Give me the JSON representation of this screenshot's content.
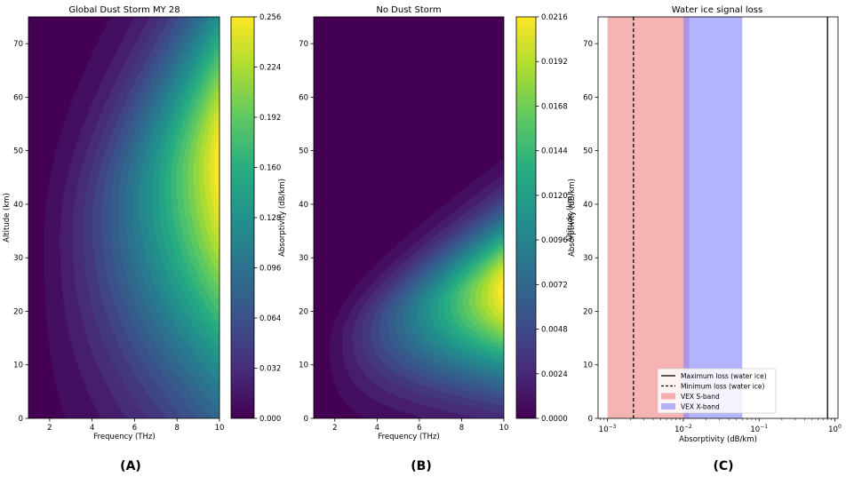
{
  "chart_data": [
    {
      "type": "heatmap",
      "title": "Global Dust Storm MY 28",
      "xlabel": "Frequency (THz)",
      "ylabel": "Altitude (km)",
      "xlim": [
        1,
        10
      ],
      "ylim": [
        0,
        75
      ],
      "xticks": [
        2,
        4,
        6,
        8,
        10
      ],
      "yticks": [
        0,
        10,
        20,
        30,
        40,
        50,
        60,
        70
      ],
      "colorbar": {
        "label": "Absorptivity (dB/km)",
        "colormap": "viridis",
        "range": [
          0,
          0.256
        ],
        "ticks": [
          "0.000",
          "0.032",
          "0.064",
          "0.096",
          "0.128",
          "0.160",
          "0.192",
          "0.224",
          "0.256"
        ]
      },
      "field": {
        "peak_value": 0.256,
        "peak_frequency": 10,
        "peak_altitude": 48
      },
      "panel_label": "(A)"
    },
    {
      "type": "heatmap",
      "title": "No Dust Storm",
      "xlabel": "Frequency (THz)",
      "ylabel": "",
      "xlim": [
        1,
        10
      ],
      "ylim": [
        0,
        75
      ],
      "xticks": [
        2,
        4,
        6,
        8,
        10
      ],
      "yticks": [
        0,
        10,
        20,
        30,
        40,
        50,
        60,
        70
      ],
      "colorbar": {
        "label": "Absorptivity (dB/km)",
        "colormap": "viridis",
        "range": [
          0,
          0.0216
        ],
        "ticks": [
          "0.0000",
          "0.0024",
          "0.0048",
          "0.0072",
          "0.0096",
          "0.0120",
          "0.0144",
          "0.0168",
          "0.0192",
          "0.0216"
        ]
      },
      "field": {
        "peak_value": 0.0216,
        "peak_frequency": 10,
        "peak_altitude": 24
      },
      "panel_label": "(B)"
    },
    {
      "type": "line",
      "title": "Water ice signal loss",
      "xlabel": "Absorptivity (dB/km)",
      "ylabel": "Altitude (km)",
      "xscale": "log",
      "xlim": [
        0.00075,
        1.1
      ],
      "ylim": [
        0,
        75
      ],
      "xticks": [
        0.001,
        0.01,
        0.1,
        1
      ],
      "xtick_labels": [
        {
          "base": "10",
          "exp": "−3"
        },
        {
          "base": "10",
          "exp": "−2"
        },
        {
          "base": "10",
          "exp": "−1"
        },
        {
          "base": "10",
          "exp": "0"
        }
      ],
      "yticks": [
        0,
        10,
        20,
        30,
        40,
        50,
        60,
        70
      ],
      "vlines": [
        {
          "name": "Maximum loss (water ice)",
          "x": 0.8,
          "style": "solid",
          "color": "#000000"
        },
        {
          "name": "Minimum loss (water ice)",
          "x": 0.0022,
          "style": "dashed",
          "color": "#000000"
        }
      ],
      "bands": [
        {
          "name": "VEX S-band",
          "x0": 0.001,
          "x1": 0.012,
          "color": "#f08080"
        },
        {
          "name": "VEX X-band",
          "x0": 0.01,
          "x1": 0.06,
          "color": "#8080ff"
        }
      ],
      "legend_position": "lower right",
      "panel_label": "(C)"
    }
  ]
}
